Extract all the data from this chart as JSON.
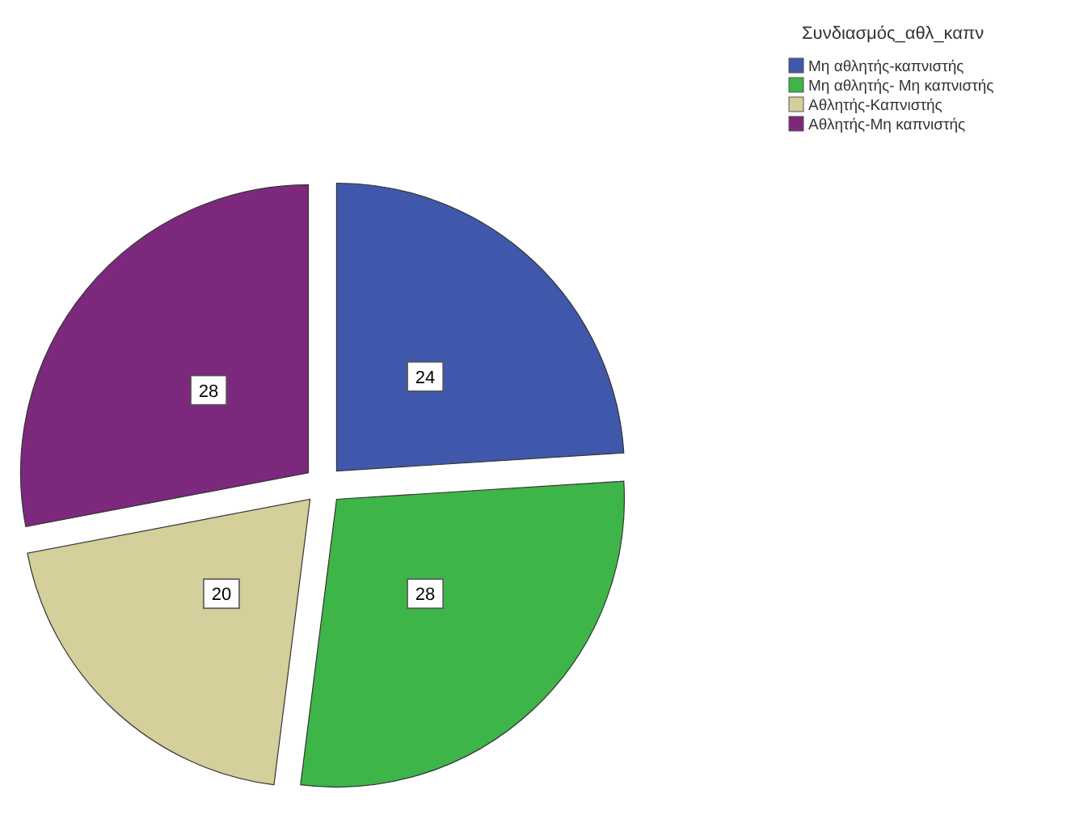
{
  "chart_data": {
    "type": "pie",
    "legend_title": "Συνδιασμός_αθλ_καπν",
    "categories": [
      "Μη αθλητής-καπνιστής",
      "Μη αθλητής- Μη καπνιστής",
      "Αθλητής-Καπνιστής",
      "Αθλητής-Μη καπνιστής"
    ],
    "values": [
      24,
      28,
      20,
      28
    ],
    "colors": [
      "#3f58ab",
      "#3db549",
      "#d4cf9b",
      "#7c297d"
    ],
    "data_labels": true,
    "legend": "top right"
  }
}
